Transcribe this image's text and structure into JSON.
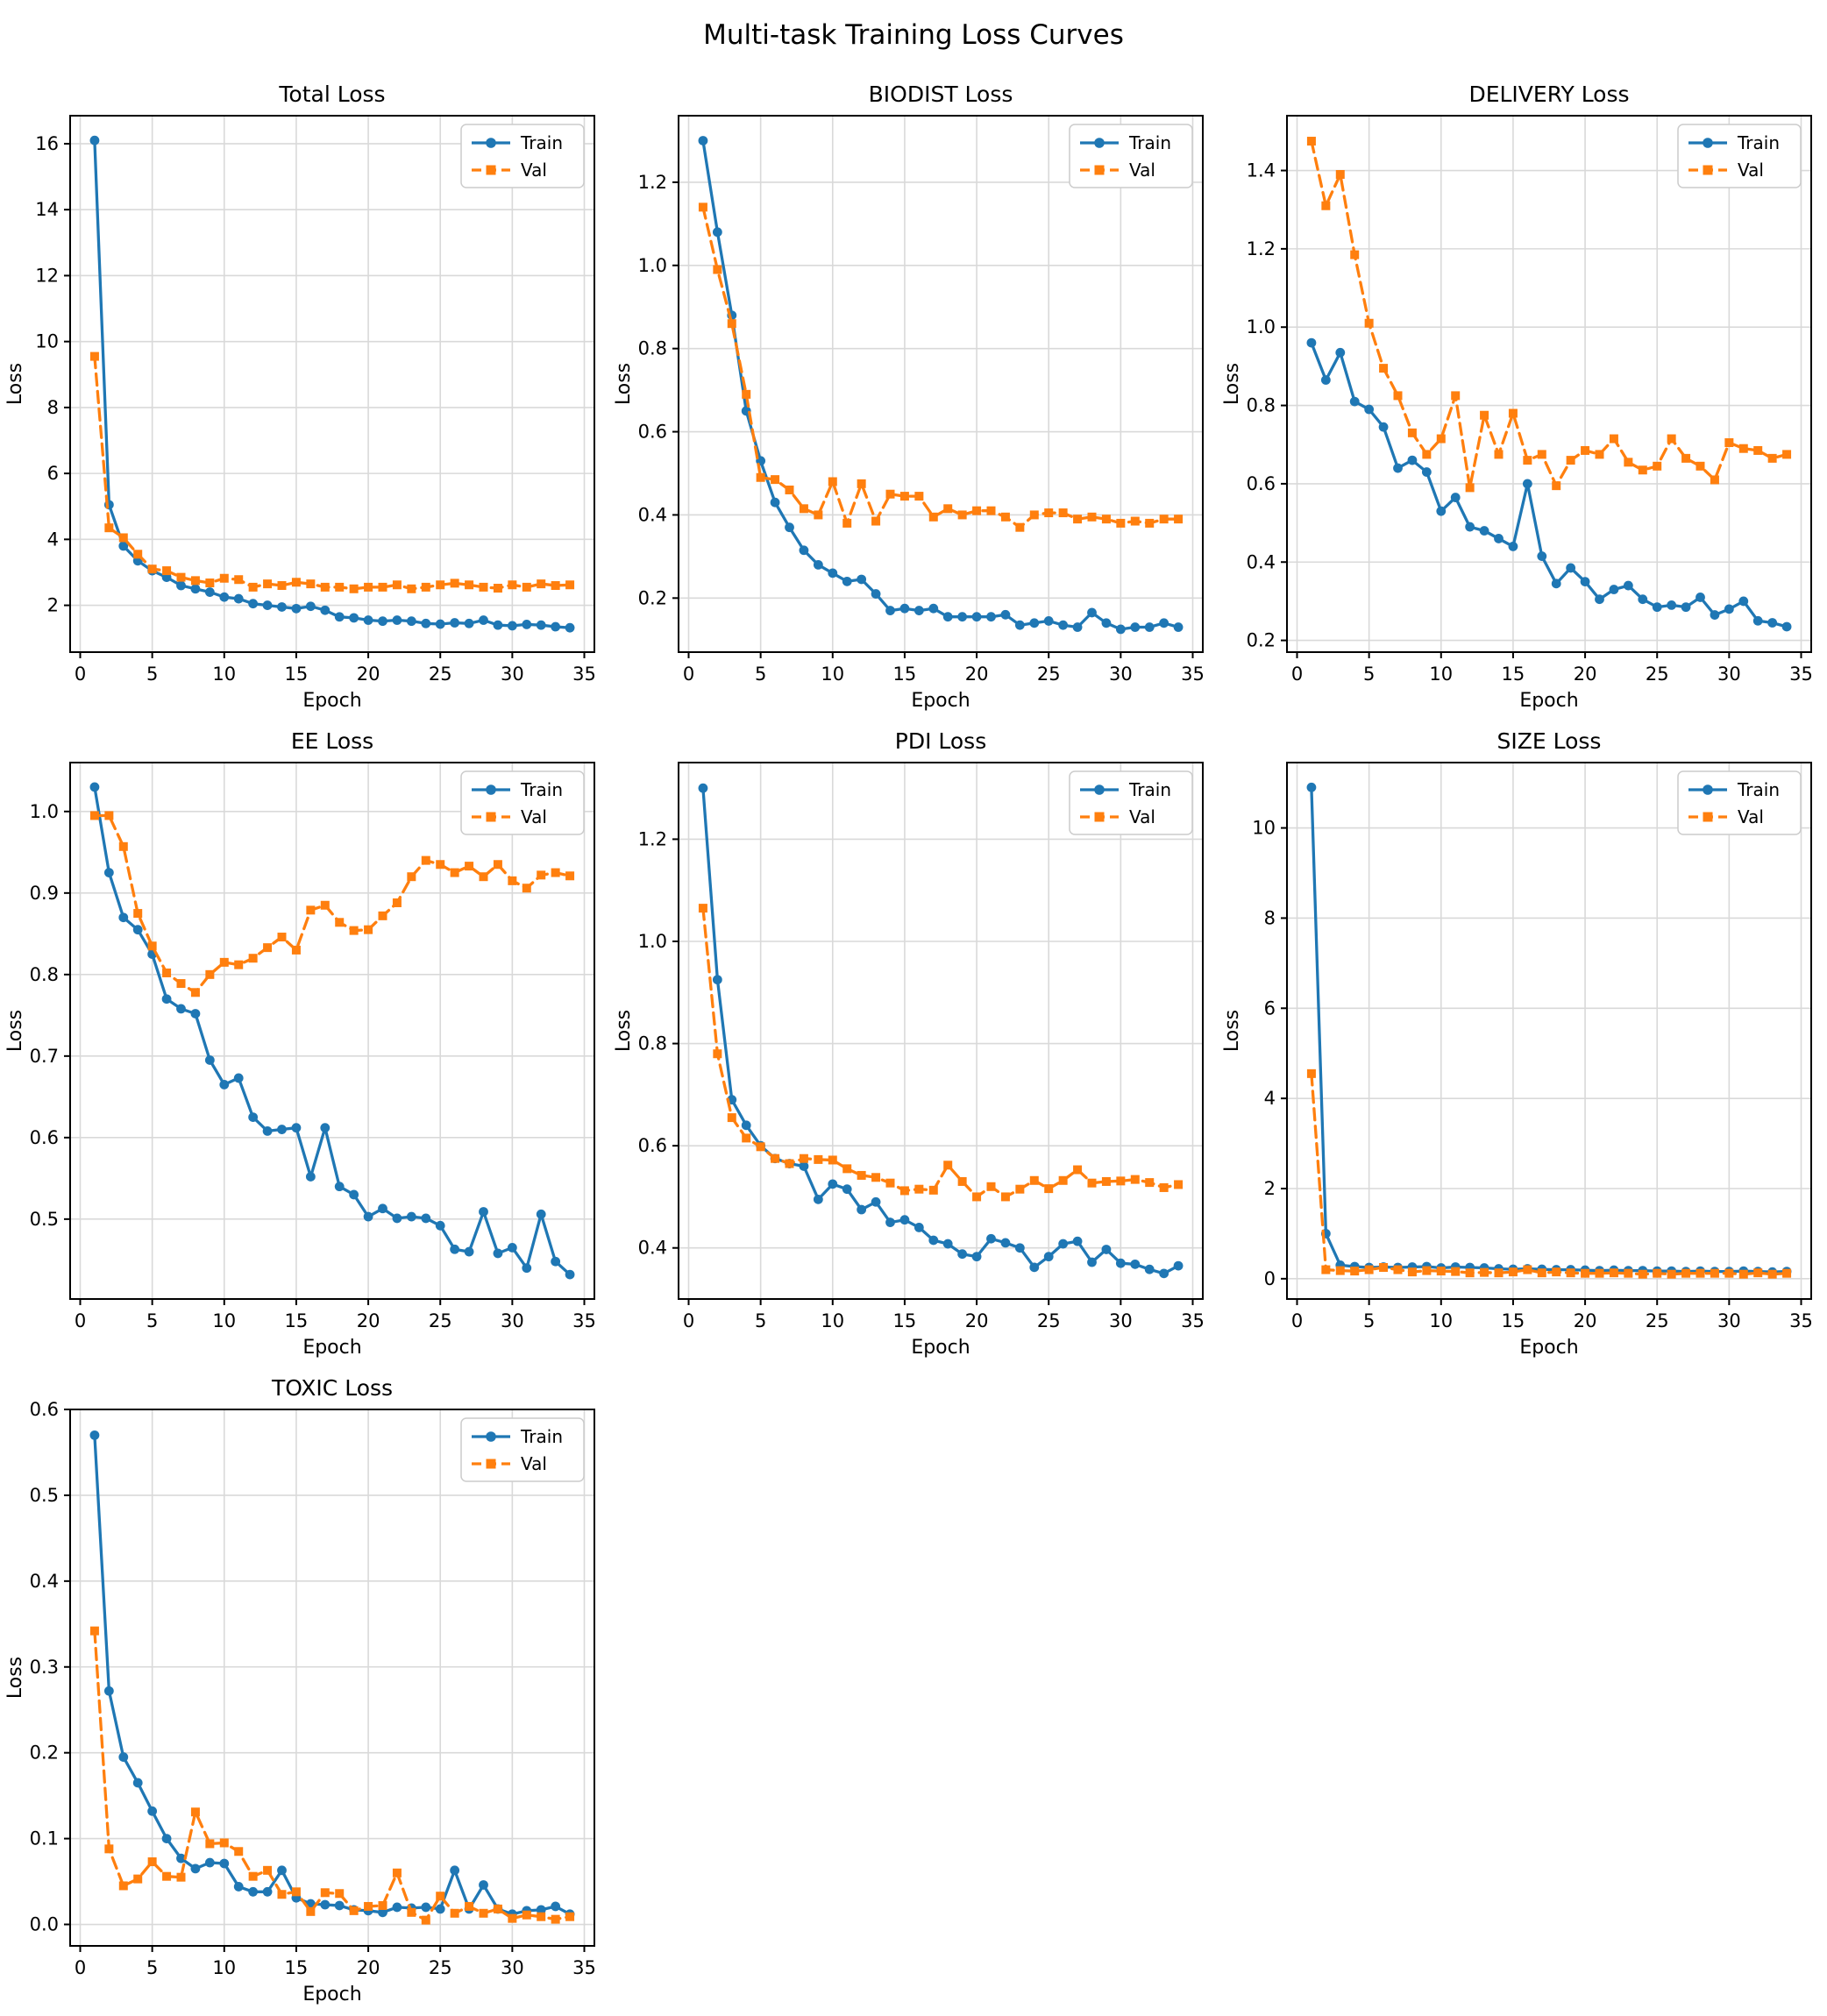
{
  "page": {
    "title": "Multi-task Training Loss Curves"
  },
  "colors": {
    "train": "#1f77b4",
    "val": "#ff7f0e",
    "grid": "#d9d9d9",
    "spine": "#000000",
    "background": "#ffffff",
    "legend_border": "#cccccc"
  },
  "legend": {
    "entries": [
      "Train",
      "Val"
    ],
    "position": "upper right"
  },
  "epochs": [
    1,
    2,
    3,
    4,
    5,
    6,
    7,
    8,
    9,
    10,
    11,
    12,
    13,
    14,
    15,
    16,
    17,
    18,
    19,
    20,
    21,
    22,
    23,
    24,
    25,
    26,
    27,
    28,
    29,
    30,
    31,
    32,
    33,
    34
  ],
  "chart_data": [
    {
      "type": "line",
      "title": "Total Loss",
      "xlabel": "Epoch",
      "ylabel": "Loss",
      "grid": true,
      "legend_position": "upper right",
      "xlim": [
        -0.7,
        35.7
      ],
      "ylim": [
        0.58,
        16.85
      ],
      "xticks": [
        0,
        5,
        10,
        15,
        20,
        25,
        30,
        35
      ],
      "xtick_labels": [
        "0",
        "5",
        "10",
        "15",
        "20",
        "25",
        "30",
        "35"
      ],
      "yticks": [
        2,
        4,
        6,
        8,
        10,
        12,
        14,
        16
      ],
      "ytick_labels": [
        "2",
        "4",
        "6",
        "8",
        "10",
        "12",
        "14",
        "16"
      ],
      "series": [
        {
          "name": "Train",
          "color": "#1f77b4",
          "marker": "circle",
          "dash": false,
          "values": [
            16.1,
            5.05,
            3.8,
            3.35,
            3.05,
            2.85,
            2.6,
            2.5,
            2.4,
            2.25,
            2.2,
            2.05,
            2.0,
            1.95,
            1.9,
            1.97,
            1.85,
            1.65,
            1.62,
            1.55,
            1.52,
            1.55,
            1.52,
            1.45,
            1.43,
            1.47,
            1.45,
            1.55,
            1.4,
            1.38,
            1.42,
            1.4,
            1.35,
            1.32
          ]
        },
        {
          "name": "Val",
          "color": "#ff7f0e",
          "marker": "square",
          "dash": true,
          "values": [
            9.55,
            4.35,
            4.05,
            3.55,
            3.1,
            3.05,
            2.85,
            2.75,
            2.68,
            2.82,
            2.78,
            2.55,
            2.65,
            2.6,
            2.7,
            2.65,
            2.55,
            2.55,
            2.5,
            2.55,
            2.55,
            2.62,
            2.5,
            2.55,
            2.62,
            2.67,
            2.62,
            2.55,
            2.52,
            2.62,
            2.55,
            2.65,
            2.6,
            2.62
          ]
        }
      ]
    },
    {
      "type": "line",
      "title": "BIODIST Loss",
      "xlabel": "Epoch",
      "ylabel": "Loss",
      "grid": true,
      "legend_position": "upper right",
      "xlim": [
        -0.7,
        35.7
      ],
      "ylim": [
        0.07,
        1.36
      ],
      "xticks": [
        0,
        5,
        10,
        15,
        20,
        25,
        30,
        35
      ],
      "xtick_labels": [
        "0",
        "5",
        "10",
        "15",
        "20",
        "25",
        "30",
        "35"
      ],
      "yticks": [
        0.2,
        0.4,
        0.6,
        0.8,
        1.0,
        1.2
      ],
      "ytick_labels": [
        "0.2",
        "0.4",
        "0.6",
        "0.8",
        "1.0",
        "1.2"
      ],
      "series": [
        {
          "name": "Train",
          "color": "#1f77b4",
          "marker": "circle",
          "dash": false,
          "values": [
            1.3,
            1.08,
            0.88,
            0.65,
            0.53,
            0.43,
            0.37,
            0.315,
            0.28,
            0.26,
            0.24,
            0.245,
            0.21,
            0.17,
            0.175,
            0.17,
            0.175,
            0.155,
            0.155,
            0.155,
            0.155,
            0.16,
            0.135,
            0.14,
            0.145,
            0.135,
            0.13,
            0.165,
            0.14,
            0.125,
            0.13,
            0.13,
            0.14,
            0.13
          ]
        },
        {
          "name": "Val",
          "color": "#ff7f0e",
          "marker": "square",
          "dash": true,
          "values": [
            1.14,
            0.99,
            0.86,
            0.69,
            0.49,
            0.485,
            0.46,
            0.415,
            0.4,
            0.48,
            0.38,
            0.475,
            0.385,
            0.45,
            0.445,
            0.445,
            0.395,
            0.415,
            0.4,
            0.41,
            0.41,
            0.395,
            0.37,
            0.4,
            0.405,
            0.405,
            0.39,
            0.395,
            0.39,
            0.38,
            0.385,
            0.38,
            0.39,
            0.39
          ]
        }
      ]
    },
    {
      "type": "line",
      "title": "DELIVERY Loss",
      "xlabel": "Epoch",
      "ylabel": "Loss",
      "grid": true,
      "legend_position": "upper right",
      "xlim": [
        -0.7,
        35.7
      ],
      "ylim": [
        0.17,
        1.54
      ],
      "xticks": [
        0,
        5,
        10,
        15,
        20,
        25,
        30,
        35
      ],
      "xtick_labels": [
        "0",
        "5",
        "10",
        "15",
        "20",
        "25",
        "30",
        "35"
      ],
      "yticks": [
        0.2,
        0.4,
        0.6,
        0.8,
        1.0,
        1.2,
        1.4
      ],
      "ytick_labels": [
        "0.2",
        "0.4",
        "0.6",
        "0.8",
        "1.0",
        "1.2",
        "1.4"
      ],
      "series": [
        {
          "name": "Train",
          "color": "#1f77b4",
          "marker": "circle",
          "dash": false,
          "values": [
            0.96,
            0.865,
            0.935,
            0.81,
            0.79,
            0.745,
            0.64,
            0.66,
            0.63,
            0.53,
            0.565,
            0.49,
            0.48,
            0.46,
            0.44,
            0.6,
            0.415,
            0.345,
            0.385,
            0.35,
            0.305,
            0.33,
            0.34,
            0.305,
            0.285,
            0.29,
            0.285,
            0.31,
            0.265,
            0.28,
            0.3,
            0.25,
            0.245,
            0.235
          ]
        },
        {
          "name": "Val",
          "color": "#ff7f0e",
          "marker": "square",
          "dash": true,
          "values": [
            1.475,
            1.31,
            1.39,
            1.185,
            1.01,
            0.895,
            0.825,
            0.73,
            0.675,
            0.715,
            0.825,
            0.59,
            0.775,
            0.675,
            0.78,
            0.66,
            0.675,
            0.595,
            0.66,
            0.685,
            0.675,
            0.715,
            0.655,
            0.635,
            0.645,
            0.715,
            0.665,
            0.645,
            0.61,
            0.705,
            0.69,
            0.685,
            0.665,
            0.675
          ]
        }
      ]
    },
    {
      "type": "line",
      "title": "EE Loss",
      "xlabel": "Epoch",
      "ylabel": "Loss",
      "grid": true,
      "legend_position": "upper right",
      "xlim": [
        -0.7,
        35.7
      ],
      "ylim": [
        0.402,
        1.06
      ],
      "xticks": [
        0,
        5,
        10,
        15,
        20,
        25,
        30,
        35
      ],
      "xtick_labels": [
        "0",
        "5",
        "10",
        "15",
        "20",
        "25",
        "30",
        "35"
      ],
      "yticks": [
        0.5,
        0.6,
        0.7,
        0.8,
        0.9,
        1.0
      ],
      "ytick_labels": [
        "0.5",
        "0.6",
        "0.7",
        "0.8",
        "0.9",
        "1.0"
      ],
      "series": [
        {
          "name": "Train",
          "color": "#1f77b4",
          "marker": "circle",
          "dash": false,
          "values": [
            1.03,
            0.925,
            0.87,
            0.855,
            0.825,
            0.77,
            0.758,
            0.752,
            0.695,
            0.665,
            0.673,
            0.625,
            0.608,
            0.61,
            0.612,
            0.552,
            0.612,
            0.54,
            0.53,
            0.503,
            0.513,
            0.501,
            0.503,
            0.501,
            0.492,
            0.463,
            0.46,
            0.509,
            0.458,
            0.465,
            0.44,
            0.506,
            0.448,
            0.432
          ]
        },
        {
          "name": "Val",
          "color": "#ff7f0e",
          "marker": "square",
          "dash": true,
          "values": [
            0.995,
            0.995,
            0.957,
            0.875,
            0.835,
            0.802,
            0.789,
            0.778,
            0.8,
            0.815,
            0.812,
            0.82,
            0.833,
            0.846,
            0.83,
            0.879,
            0.885,
            0.864,
            0.854,
            0.855,
            0.872,
            0.888,
            0.92,
            0.94,
            0.935,
            0.925,
            0.933,
            0.92,
            0.935,
            0.915,
            0.906,
            0.922,
            0.925,
            0.921
          ]
        }
      ]
    },
    {
      "type": "line",
      "title": "PDI Loss",
      "xlabel": "Epoch",
      "ylabel": "Loss",
      "grid": true,
      "legend_position": "upper right",
      "xlim": [
        -0.7,
        35.7
      ],
      "ylim": [
        0.3,
        1.35
      ],
      "xticks": [
        0,
        5,
        10,
        15,
        20,
        25,
        30,
        35
      ],
      "xtick_labels": [
        "0",
        "5",
        "10",
        "15",
        "20",
        "25",
        "30",
        "35"
      ],
      "yticks": [
        0.4,
        0.6,
        0.8,
        1.0,
        1.2
      ],
      "ytick_labels": [
        "0.4",
        "0.6",
        "0.8",
        "1.0",
        "1.2"
      ],
      "series": [
        {
          "name": "Train",
          "color": "#1f77b4",
          "marker": "circle",
          "dash": false,
          "values": [
            1.3,
            0.925,
            0.69,
            0.64,
            0.6,
            0.575,
            0.565,
            0.56,
            0.495,
            0.525,
            0.515,
            0.475,
            0.49,
            0.45,
            0.455,
            0.44,
            0.415,
            0.408,
            0.388,
            0.383,
            0.418,
            0.41,
            0.4,
            0.362,
            0.383,
            0.408,
            0.413,
            0.372,
            0.397,
            0.37,
            0.368,
            0.358,
            0.35,
            0.365
          ]
        },
        {
          "name": "Val",
          "color": "#ff7f0e",
          "marker": "square",
          "dash": true,
          "values": [
            1.065,
            0.78,
            0.655,
            0.615,
            0.598,
            0.575,
            0.565,
            0.575,
            0.573,
            0.572,
            0.555,
            0.542,
            0.538,
            0.527,
            0.512,
            0.515,
            0.513,
            0.562,
            0.53,
            0.5,
            0.52,
            0.5,
            0.515,
            0.532,
            0.516,
            0.532,
            0.553,
            0.527,
            0.53,
            0.531,
            0.534,
            0.528,
            0.518,
            0.524
          ]
        }
      ]
    },
    {
      "type": "line",
      "title": "SIZE Loss",
      "xlabel": "Epoch",
      "ylabel": "Loss",
      "grid": true,
      "legend_position": "upper right",
      "xlim": [
        -0.7,
        35.7
      ],
      "ylim": [
        -0.45,
        11.45
      ],
      "xticks": [
        0,
        5,
        10,
        15,
        20,
        25,
        30,
        35
      ],
      "xtick_labels": [
        "0",
        "5",
        "10",
        "15",
        "20",
        "25",
        "30",
        "35"
      ],
      "yticks": [
        0,
        2,
        4,
        6,
        8,
        10
      ],
      "ytick_labels": [
        "0",
        "2",
        "4",
        "6",
        "8",
        "10"
      ],
      "series": [
        {
          "name": "Train",
          "color": "#1f77b4",
          "marker": "circle",
          "dash": false,
          "values": [
            10.9,
            1.0,
            0.3,
            0.27,
            0.25,
            0.26,
            0.25,
            0.26,
            0.27,
            0.24,
            0.26,
            0.25,
            0.24,
            0.22,
            0.21,
            0.22,
            0.21,
            0.2,
            0.2,
            0.19,
            0.18,
            0.19,
            0.18,
            0.18,
            0.17,
            0.17,
            0.16,
            0.17,
            0.16,
            0.16,
            0.17,
            0.16,
            0.15,
            0.16
          ]
        },
        {
          "name": "Val",
          "color": "#ff7f0e",
          "marker": "square",
          "dash": true,
          "values": [
            4.55,
            0.2,
            0.18,
            0.17,
            0.2,
            0.25,
            0.2,
            0.15,
            0.18,
            0.17,
            0.16,
            0.13,
            0.14,
            0.13,
            0.15,
            0.2,
            0.13,
            0.15,
            0.13,
            0.12,
            0.12,
            0.13,
            0.12,
            0.1,
            0.12,
            0.1,
            0.12,
            0.12,
            0.12,
            0.12,
            0.1,
            0.13,
            0.1,
            0.12
          ]
        }
      ]
    },
    {
      "type": "line",
      "title": "TOXIC Loss",
      "xlabel": "Epoch",
      "ylabel": "Loss",
      "grid": true,
      "legend_position": "upper right",
      "xlim": [
        -0.7,
        35.7
      ],
      "ylim": [
        -0.025,
        0.6
      ],
      "xticks": [
        0,
        5,
        10,
        15,
        20,
        25,
        30,
        35
      ],
      "xtick_labels": [
        "0",
        "5",
        "10",
        "15",
        "20",
        "25",
        "30",
        "35"
      ],
      "yticks": [
        0.0,
        0.1,
        0.2,
        0.3,
        0.4,
        0.5,
        0.6
      ],
      "ytick_labels": [
        "0.0",
        "0.1",
        "0.2",
        "0.3",
        "0.4",
        "0.5",
        "0.6"
      ],
      "series": [
        {
          "name": "Train",
          "color": "#1f77b4",
          "marker": "circle",
          "dash": false,
          "values": [
            0.57,
            0.272,
            0.195,
            0.165,
            0.132,
            0.1,
            0.077,
            0.065,
            0.072,
            0.071,
            0.044,
            0.038,
            0.038,
            0.063,
            0.031,
            0.024,
            0.023,
            0.022,
            0.017,
            0.016,
            0.014,
            0.02,
            0.019,
            0.02,
            0.018,
            0.063,
            0.018,
            0.046,
            0.018,
            0.012,
            0.016,
            0.017,
            0.021,
            0.012
          ]
        },
        {
          "name": "Val",
          "color": "#ff7f0e",
          "marker": "square",
          "dash": true,
          "values": [
            0.342,
            0.088,
            0.045,
            0.053,
            0.073,
            0.056,
            0.055,
            0.131,
            0.094,
            0.095,
            0.085,
            0.056,
            0.063,
            0.035,
            0.038,
            0.015,
            0.037,
            0.036,
            0.016,
            0.021,
            0.022,
            0.06,
            0.014,
            0.005,
            0.033,
            0.013,
            0.021,
            0.013,
            0.018,
            0.007,
            0.011,
            0.009,
            0.006,
            0.009
          ]
        }
      ]
    }
  ]
}
